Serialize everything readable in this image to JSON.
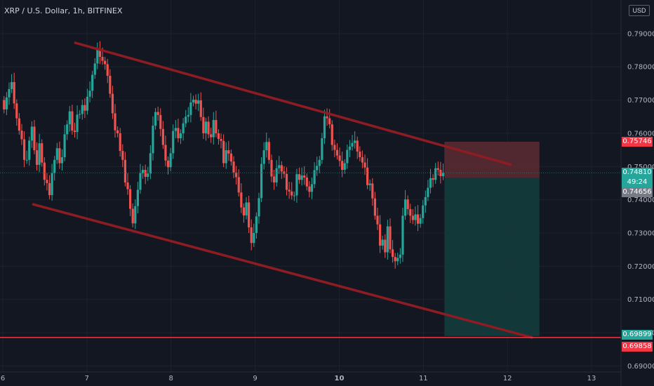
{
  "header": {
    "title": "XRP / U.S. Dollar, 1h, BITFINEX"
  },
  "currency_badge": "USD",
  "colors": {
    "background": "#131722",
    "up": "#26a69a",
    "down": "#ef5350",
    "channel": "#8e1c22",
    "support": "#f23645",
    "stop_zone": "#5d2b33",
    "target_zone": "#143c3d",
    "axis_text": "#b2b5be"
  },
  "chart_data": {
    "type": "candlestick",
    "title": "XRP / U.S. Dollar, 1h, BITFINEX",
    "ylim": [
      0.6882,
      0.8001
    ],
    "y_ticks": [
      "0.79000",
      "0.78000",
      "0.77000",
      "0.76000",
      "0.75000",
      "0.74000",
      "0.73000",
      "0.72000",
      "0.71000",
      "0.70000",
      "0.69000"
    ],
    "y_tick_values": [
      0.79,
      0.78,
      0.77,
      0.76,
      0.75,
      0.74,
      0.73,
      0.72,
      0.71,
      0.7,
      0.69
    ],
    "x_range": [
      6,
      13.35
    ],
    "x_ticks": [
      "6",
      "7",
      "8",
      "9",
      "10",
      "11",
      "12",
      "13"
    ],
    "x_tick_values": [
      6,
      7,
      8,
      9,
      10,
      11,
      12,
      13
    ],
    "price_labels": [
      {
        "text": "0.75746",
        "value": 0.75746,
        "color": "#f23645"
      },
      {
        "text": "0.74810",
        "value": 0.7481,
        "color": "#26a69a"
      },
      {
        "text": "49:24",
        "value": 0.7464,
        "color": "#26a69a"
      },
      {
        "text": "0.74656",
        "value": 0.74656,
        "color": "#787b86"
      },
      {
        "text": "0.69899",
        "value": 0.69899,
        "color": "#26a69a"
      },
      {
        "text": "0.69858",
        "value": 0.69858,
        "color": "#f23645"
      }
    ],
    "channel_upper": [
      [
        6.85,
        0.7873
      ],
      [
        12.05,
        0.7505
      ]
    ],
    "channel_lower": [
      [
        6.35,
        0.7387
      ],
      [
        12.3,
        0.6985
      ]
    ],
    "support_level": 0.69858,
    "position": {
      "x_start": 11.25,
      "x_end": 12.38,
      "entry": 0.74656,
      "stop": 0.75746,
      "target": 0.69899
    },
    "candles_close": [
      0.7672,
      0.7708,
      0.7733,
      0.7754,
      0.769,
      0.7645,
      0.7608,
      0.7582,
      0.752,
      0.752,
      0.7578,
      0.762,
      0.7549,
      0.7505,
      0.757,
      0.7512,
      0.746,
      0.745,
      0.7414,
      0.748,
      0.752,
      0.7555,
      0.751,
      0.7528,
      0.7597,
      0.7627,
      0.7666,
      0.7608,
      0.7604,
      0.7656,
      0.7658,
      0.7685,
      0.7668,
      0.771,
      0.7728,
      0.7776,
      0.781,
      0.7853,
      0.783,
      0.7818,
      0.7808,
      0.7773,
      0.7719,
      0.766,
      0.7609,
      0.76,
      0.7547,
      0.752,
      0.7452,
      0.7432,
      0.7373,
      0.7329,
      0.7381,
      0.743,
      0.748,
      0.749,
      0.7469,
      0.7479,
      0.754,
      0.7623,
      0.7664,
      0.7655,
      0.7613,
      0.7565,
      0.7518,
      0.7498,
      0.754,
      0.7607,
      0.7616,
      0.7585,
      0.76,
      0.763,
      0.765,
      0.7655,
      0.7693,
      0.7701,
      0.7689,
      0.7699,
      0.7649,
      0.76,
      0.7635,
      0.7597,
      0.7588,
      0.764,
      0.76,
      0.7583,
      0.7577,
      0.751,
      0.7549,
      0.7539,
      0.7515,
      0.7482,
      0.7468,
      0.7422,
      0.7377,
      0.7353,
      0.7392,
      0.7317,
      0.727,
      0.73,
      0.735,
      0.7405,
      0.7508,
      0.7549,
      0.7574,
      0.752,
      0.747,
      0.7452,
      0.7495,
      0.7504,
      0.7485,
      0.7478,
      0.743,
      0.7425,
      0.7413,
      0.7413,
      0.7477,
      0.746,
      0.7473,
      0.7467,
      0.744,
      0.7424,
      0.7447,
      0.7489,
      0.7502,
      0.752,
      0.7585,
      0.7651,
      0.7645,
      0.7627,
      0.7565,
      0.755,
      0.7533,
      0.7517,
      0.749,
      0.751,
      0.755,
      0.756,
      0.7571,
      0.7578,
      0.7545,
      0.7528,
      0.7512,
      0.7497,
      0.7444,
      0.7449,
      0.7404,
      0.7352,
      0.7326,
      0.7262,
      0.728,
      0.7242,
      0.732,
      0.7251,
      0.7228,
      0.7215,
      0.7225,
      0.7235,
      0.7352,
      0.7401,
      0.7372,
      0.7352,
      0.7339,
      0.7356,
      0.7328,
      0.7345,
      0.7383,
      0.7408,
      0.7436,
      0.7465,
      0.746,
      0.7495,
      0.749,
      0.7471,
      0.7481
    ],
    "candles_open_start": 0.77
  }
}
